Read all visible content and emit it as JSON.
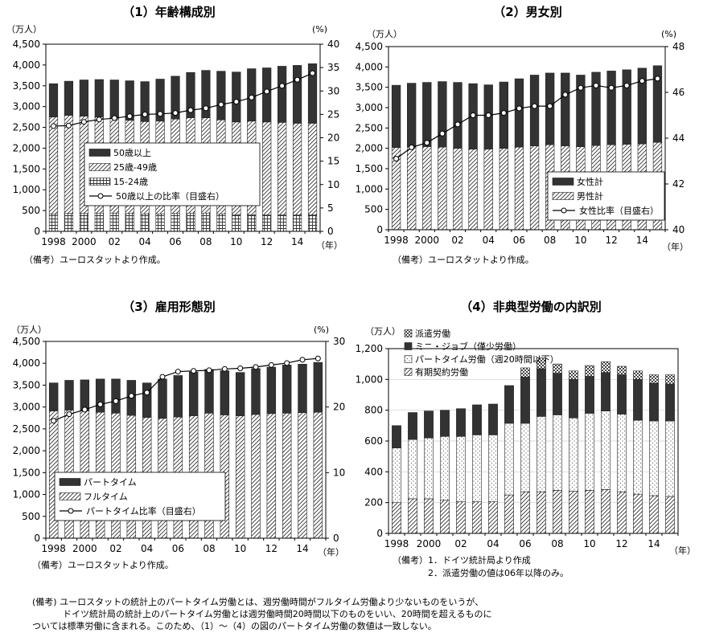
{
  "chart_data": [
    {
      "id": "c1",
      "type": "bar",
      "stacked": true,
      "title": "（1）年齢構成別",
      "y_unit": "（万人）",
      "y2_unit": "(%)",
      "ylim": [
        0,
        4500
      ],
      "y_ticks": [
        "0",
        "500",
        "1,000",
        "1,500",
        "2,000",
        "2,500",
        "3,000",
        "3,500",
        "4,000",
        "4,500"
      ],
      "y2lim": [
        0,
        40
      ],
      "y2_ticks": [
        "0",
        "5",
        "10",
        "15",
        "20",
        "25",
        "30",
        "35",
        "40"
      ],
      "x_tick_labels": [
        "1998",
        "2000",
        "02",
        "04",
        "06",
        "08",
        "10",
        "12",
        "14"
      ],
      "x_unit": "（年）",
      "note": "（備考）ユーロスタットより作成。",
      "x": [
        1998,
        1999,
        2000,
        2001,
        2002,
        2003,
        2004,
        2005,
        2006,
        2007,
        2008,
        2009,
        2010,
        2011,
        2012,
        2013,
        2014,
        2015
      ],
      "series": [
        {
          "name": "15-24歳",
          "pattern": "grid",
          "values": [
            420,
            430,
            430,
            440,
            440,
            430,
            420,
            420,
            430,
            440,
            440,
            420,
            400,
            400,
            400,
            400,
            400,
            400
          ]
        },
        {
          "name": "25歳-49歳",
          "pattern": "diag",
          "values": [
            2330,
            2360,
            2340,
            2310,
            2280,
            2240,
            2220,
            2230,
            2270,
            2290,
            2290,
            2260,
            2230,
            2250,
            2230,
            2220,
            2200,
            2200
          ]
        },
        {
          "name": "50歳以上",
          "pattern": "dark",
          "values": [
            800,
            820,
            870,
            900,
            920,
            950,
            960,
            1010,
            1030,
            1090,
            1140,
            1170,
            1200,
            1260,
            1300,
            1350,
            1390,
            1430
          ]
        },
        {
          "name": "50歳以上の比率（目盛右）",
          "type": "line",
          "axis": "right",
          "values": [
            22.5,
            22.6,
            23.4,
            23.9,
            24.2,
            24.6,
            25.0,
            25.1,
            25.3,
            25.9,
            26.3,
            27.1,
            27.7,
            28.6,
            29.9,
            31.1,
            32.4,
            33.8
          ]
        }
      ]
    },
    {
      "id": "c2",
      "type": "bar",
      "stacked": true,
      "title": "（2）男女別",
      "y_unit": "（万人）",
      "y2_unit": "(%)",
      "ylim": [
        0,
        4500
      ],
      "y_ticks": [
        "0",
        "500",
        "1,000",
        "1,500",
        "2,000",
        "2,500",
        "3,000",
        "3,500",
        "4,000",
        "4,500"
      ],
      "y2lim": [
        40,
        48
      ],
      "y2_ticks": [
        "40",
        "42",
        "44",
        "46",
        "48"
      ],
      "x_tick_labels": [
        "1998",
        "2000",
        "02",
        "04",
        "06",
        "08",
        "10",
        "12",
        "14"
      ],
      "x_unit": "（年）",
      "note": "（備考）ユーロスタットより作成。",
      "x": [
        1998,
        1999,
        2000,
        2001,
        2002,
        2003,
        2004,
        2005,
        2006,
        2007,
        2008,
        2009,
        2010,
        2011,
        2012,
        2013,
        2014,
        2015
      ],
      "series": [
        {
          "name": "男性計",
          "pattern": "diag",
          "values": [
            2020,
            2030,
            2040,
            2030,
            2000,
            1980,
            1980,
            2000,
            2030,
            2060,
            2090,
            2060,
            2040,
            2070,
            2090,
            2100,
            2110,
            2150
          ]
        },
        {
          "name": "女性計",
          "pattern": "dark",
          "values": [
            1530,
            1570,
            1580,
            1610,
            1620,
            1610,
            1580,
            1630,
            1680,
            1740,
            1760,
            1790,
            1760,
            1800,
            1810,
            1830,
            1860,
            1880
          ]
        },
        {
          "name": "女性比率（目盛右）",
          "type": "line",
          "axis": "right",
          "values": [
            43.1,
            43.6,
            43.8,
            44.2,
            44.6,
            45.0,
            45.0,
            45.1,
            45.3,
            45.4,
            45.4,
            45.9,
            46.2,
            46.3,
            46.2,
            46.3,
            46.5,
            46.6
          ]
        }
      ]
    },
    {
      "id": "c3",
      "type": "bar",
      "stacked": true,
      "title": "（3）雇用形態別",
      "y_unit": "（万人）",
      "y2_unit": "(%)",
      "ylim": [
        0,
        4500
      ],
      "y_ticks": [
        "0",
        "500",
        "1,000",
        "1,500",
        "2,000",
        "2,500",
        "3,000",
        "3,500",
        "4,000",
        "4,500"
      ],
      "y2lim": [
        0,
        30
      ],
      "y2_ticks": [
        "0",
        "10",
        "20",
        "30"
      ],
      "x_tick_labels": [
        "1998",
        "2000",
        "02",
        "04",
        "06",
        "08",
        "10",
        "12",
        "14"
      ],
      "x_unit": "（年）",
      "note": "（備考）ユーロスタットより作成。",
      "x": [
        1998,
        1999,
        2000,
        2001,
        2002,
        2003,
        2004,
        2005,
        2006,
        2007,
        2008,
        2009,
        2010,
        2011,
        2012,
        2013,
        2014,
        2015
      ],
      "series": [
        {
          "name": "フルタイム",
          "pattern": "diag",
          "values": [
            2910,
            2930,
            2910,
            2880,
            2860,
            2810,
            2760,
            2740,
            2770,
            2800,
            2860,
            2820,
            2800,
            2830,
            2850,
            2860,
            2870,
            2880
          ]
        },
        {
          "name": "パートタイム",
          "pattern": "dark",
          "values": [
            640,
            680,
            710,
            760,
            780,
            800,
            790,
            900,
            950,
            1000,
            1000,
            1010,
            990,
            1050,
            1060,
            1100,
            1110,
            1140
          ]
        },
        {
          "name": "パートタイム比率（目盛右）",
          "type": "line",
          "axis": "right",
          "values": [
            17.9,
            18.9,
            19.6,
            20.4,
            20.9,
            21.7,
            22.2,
            24.6,
            25.4,
            25.5,
            25.6,
            25.8,
            25.9,
            26.1,
            26.4,
            26.7,
            27.2,
            27.4
          ]
        }
      ]
    },
    {
      "id": "c4",
      "type": "bar",
      "stacked": true,
      "title": "（4）非典型労働の内訳別",
      "y_unit": "（万人）",
      "ylim": [
        0,
        1200
      ],
      "y_ticks": [
        "0",
        "200",
        "400",
        "600",
        "800",
        "1,000",
        "1,200"
      ],
      "x_tick_labels": [
        "1998",
        "2000",
        "02",
        "04",
        "06",
        "08",
        "10",
        "12",
        "14"
      ],
      "x_unit": "（年）",
      "note_lines": [
        "（備考）1．ドイツ統計局より作成",
        "2．派遣労働の値は06年以降のみ。"
      ],
      "x": [
        1998,
        1999,
        2000,
        2001,
        2002,
        2003,
        2004,
        2005,
        2006,
        2007,
        2008,
        2009,
        2010,
        2011,
        2012,
        2013,
        2014,
        2015
      ],
      "series": [
        {
          "name": "有期契約労働",
          "pattern": "diag",
          "values": [
            200,
            225,
            225,
            215,
            205,
            205,
            205,
            250,
            270,
            270,
            280,
            275,
            280,
            285,
            270,
            255,
            245,
            240
          ]
        },
        {
          "name": "パートタイム労働（週20時間以下）",
          "pattern": "dots",
          "values": [
            355,
            385,
            395,
            415,
            425,
            435,
            435,
            465,
            445,
            490,
            490,
            475,
            500,
            510,
            505,
            480,
            485,
            490
          ]
        },
        {
          "name": "ミニ・ジョブ（僅少労働）",
          "pattern": "dark",
          "values": [
            145,
            175,
            175,
            170,
            180,
            195,
            200,
            245,
            300,
            310,
            270,
            250,
            240,
            250,
            255,
            265,
            245,
            240
          ]
        },
        {
          "name": "派遣労働",
          "pattern": "checks",
          "values": [
            0,
            0,
            0,
            0,
            0,
            0,
            0,
            0,
            60,
            70,
            60,
            55,
            70,
            70,
            55,
            55,
            55,
            60
          ]
        }
      ]
    }
  ],
  "footnote": [
    "(備考) ユーロスタットの統計上のパートタイム労働とは、週労働時間がフルタイム労働より少ないものをいうが、",
    "ドイツ統計局の統計上のパートタイム労働とは週労働時間20時間以下のものをいい、20時間を超えるものに",
    "ついては標準労働に含まれる。このため、（1）〜（4）の図のパートタイム労働の数値は一致しない。"
  ]
}
